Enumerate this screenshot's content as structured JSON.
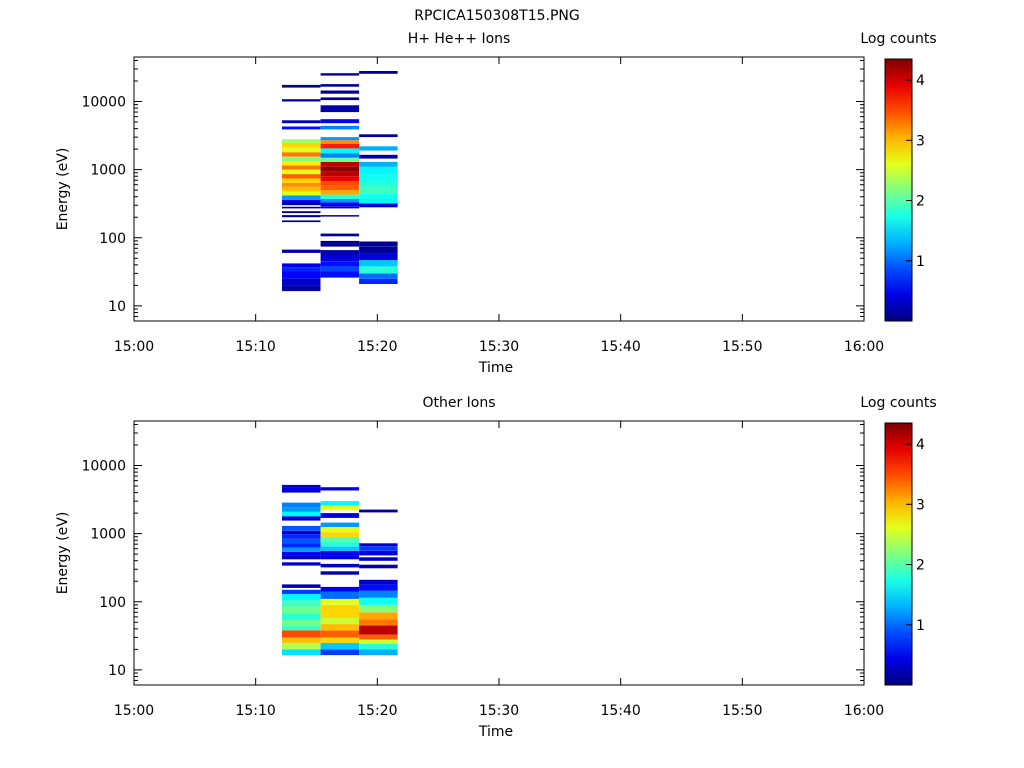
{
  "figure_title": "RPCICA150308T15.PNG",
  "chart_data": [
    {
      "type": "heatmap",
      "title": "H+ He++ Ions",
      "xlabel": "Time",
      "ylabel": "Energy (eV)",
      "x_ticks": [
        "15:00",
        "15:10",
        "15:20",
        "15:30",
        "15:40",
        "15:50",
        "16:00"
      ],
      "xlim": [
        "15:00",
        "16:00"
      ],
      "y_scale": "log",
      "y_ticks": [
        10,
        100,
        1000,
        10000
      ],
      "y_tick_labels": [
        "10",
        "100",
        "1000",
        "10000"
      ],
      "ylim": [
        6,
        45000
      ],
      "colorbar": {
        "label": "Log counts",
        "range": [
          0,
          4.35
        ],
        "ticks": [
          "1",
          "2",
          "3",
          "4"
        ],
        "colormap": "jet"
      },
      "time_bins": [
        {
          "start": "15:12:10",
          "end": "15:15:20",
          "cells": [
            [
              16.5,
              20,
              0.15
            ],
            [
              20,
              25,
              0.3
            ],
            [
              25,
              32,
              0.55
            ],
            [
              32,
              37,
              0.7
            ],
            [
              37,
              42,
              0.45
            ],
            [
              60,
              67,
              0.15
            ],
            [
              170,
              180,
              0.1
            ],
            [
              200,
              215,
              0.1
            ],
            [
              230,
              245,
              0.1
            ],
            [
              270,
              285,
              0.1
            ],
            [
              300,
              330,
              0.2
            ],
            [
              330,
              360,
              0.5
            ],
            [
              360,
              420,
              1.2
            ],
            [
              420,
              480,
              2.6
            ],
            [
              480,
              560,
              3.0
            ],
            [
              560,
              640,
              3.2
            ],
            [
              640,
              740,
              2.9
            ],
            [
              740,
              860,
              3.4
            ],
            [
              860,
              1000,
              2.6
            ],
            [
              1000,
              1150,
              3.3
            ],
            [
              1150,
              1330,
              2.8
            ],
            [
              1330,
              1550,
              2.2
            ],
            [
              1550,
              1800,
              3.3
            ],
            [
              1800,
              2100,
              2.6
            ],
            [
              2100,
              2450,
              2.9
            ],
            [
              2450,
              2800,
              2.3
            ],
            [
              3900,
              4300,
              0.6
            ],
            [
              4800,
              5300,
              0.3
            ],
            [
              10000,
              10800,
              0.1
            ],
            [
              16000,
              17500,
              0.1
            ]
          ]
        },
        {
          "start": "15:15:20",
          "end": "15:18:30",
          "cells": [
            [
              26,
              32,
              0.6
            ],
            [
              32,
              38,
              0.85
            ],
            [
              38,
              45,
              0.6
            ],
            [
              45,
              55,
              0.4
            ],
            [
              55,
              66,
              0.2
            ],
            [
              74,
              82,
              0.1
            ],
            [
              82,
              90,
              0.1
            ],
            [
              105,
              115,
              0.1
            ],
            [
              205,
              215,
              0.1
            ],
            [
              270,
              290,
              0.3
            ],
            [
              290,
              330,
              0.5
            ],
            [
              330,
              370,
              1.2
            ],
            [
              370,
              430,
              1.8
            ],
            [
              430,
              500,
              3.1
            ],
            [
              500,
              580,
              3.4
            ],
            [
              580,
              680,
              3.5
            ],
            [
              680,
              800,
              3.9
            ],
            [
              800,
              950,
              4.1
            ],
            [
              950,
              1100,
              4.3
            ],
            [
              1100,
              1300,
              4.1
            ],
            [
              1300,
              1500,
              2.1
            ],
            [
              1500,
              1750,
              1.1
            ],
            [
              1750,
              2050,
              1.6
            ],
            [
              2050,
              2400,
              3.7
            ],
            [
              2400,
              2700,
              3.2
            ],
            [
              2700,
              3000,
              1.2
            ],
            [
              3900,
              4400,
              1.1
            ],
            [
              4800,
              5500,
              0.5
            ],
            [
              7000,
              8800,
              0.2
            ],
            [
              10500,
              11500,
              0.1
            ],
            [
              13000,
              14500,
              0.1
            ],
            [
              16500,
              18000,
              0.1
            ],
            [
              24000,
              26000,
              0.1
            ]
          ]
        },
        {
          "start": "15:18:30",
          "end": "15:21:40",
          "cells": [
            [
              21,
              25,
              0.7
            ],
            [
              25,
              30,
              1.0
            ],
            [
              30,
              38,
              1.8
            ],
            [
              38,
              47,
              1.4
            ],
            [
              47,
              58,
              0.4
            ],
            [
              58,
              75,
              0.1
            ],
            [
              75,
              88,
              0.1
            ],
            [
              280,
              320,
              0.4
            ],
            [
              320,
              370,
              1.6
            ],
            [
              370,
              450,
              1.7
            ],
            [
              450,
              550,
              1.9
            ],
            [
              550,
              680,
              1.8
            ],
            [
              680,
              850,
              1.7
            ],
            [
              850,
              1100,
              1.6
            ],
            [
              1100,
              1300,
              1.3
            ],
            [
              1450,
              1650,
              0.2
            ],
            [
              1900,
              2200,
              1.3
            ],
            [
              3000,
              3300,
              0.1
            ],
            [
              25500,
              28000,
              0.1
            ]
          ]
        }
      ]
    },
    {
      "type": "heatmap",
      "title": "Other Ions",
      "xlabel": "Time",
      "ylabel": "Energy (eV)",
      "x_ticks": [
        "15:00",
        "15:10",
        "15:20",
        "15:30",
        "15:40",
        "15:50",
        "16:00"
      ],
      "xlim": [
        "15:00",
        "16:00"
      ],
      "y_scale": "log",
      "y_ticks": [
        10,
        100,
        1000,
        10000
      ],
      "y_tick_labels": [
        "10",
        "100",
        "1000",
        "10000"
      ],
      "ylim": [
        6,
        45000
      ],
      "colorbar": {
        "label": "Log counts",
        "range": [
          0,
          4.35
        ],
        "ticks": [
          "1",
          "2",
          "3",
          "4"
        ],
        "colormap": "jet"
      },
      "time_bins": [
        {
          "start": "15:12:10",
          "end": "15:15:20",
          "cells": [
            [
              16.5,
              20,
              1.5
            ],
            [
              20,
              25,
              2.4
            ],
            [
              25,
              30,
              3.0
            ],
            [
              30,
              38,
              3.5
            ],
            [
              38,
              45,
              1.9
            ],
            [
              45,
              55,
              2.1
            ],
            [
              55,
              68,
              1.8
            ],
            [
              68,
              85,
              2.1
            ],
            [
              85,
              105,
              1.9
            ],
            [
              105,
              130,
              1.6
            ],
            [
              130,
              150,
              0.8
            ],
            [
              160,
              180,
              0.2
            ],
            [
              340,
              380,
              0.3
            ],
            [
              420,
              480,
              0.3
            ],
            [
              480,
              540,
              0.5
            ],
            [
              540,
              620,
              1.2
            ],
            [
              620,
              720,
              0.7
            ],
            [
              720,
              840,
              0.9
            ],
            [
              840,
              980,
              0.7
            ],
            [
              980,
              1100,
              0.3
            ],
            [
              1100,
              1300,
              0.9
            ],
            [
              1550,
              1800,
              0.4
            ],
            [
              1800,
              2100,
              1.6
            ],
            [
              2100,
              2450,
              1.2
            ],
            [
              2450,
              2850,
              1.1
            ],
            [
              4000,
              4700,
              0.4
            ],
            [
              4700,
              5200,
              0.3
            ]
          ]
        },
        {
          "start": "15:15:20",
          "end": "15:18:30",
          "cells": [
            [
              16.5,
              20,
              0.8
            ],
            [
              20,
              25,
              1.4
            ],
            [
              25,
              30,
              2.9
            ],
            [
              30,
              38,
              3.4
            ],
            [
              38,
              47,
              3.0
            ],
            [
              47,
              58,
              2.5
            ],
            [
              58,
              72,
              2.9
            ],
            [
              72,
              90,
              2.9
            ],
            [
              90,
              110,
              2.6
            ],
            [
              110,
              140,
              1.0
            ],
            [
              140,
              165,
              0.5
            ],
            [
              250,
              280,
              0.2
            ],
            [
              320,
              360,
              0.3
            ],
            [
              420,
              480,
              0.4
            ],
            [
              480,
              560,
              0.5
            ],
            [
              560,
              650,
              1.4
            ],
            [
              650,
              760,
              1.8
            ],
            [
              760,
              900,
              2.0
            ],
            [
              900,
              1050,
              2.9
            ],
            [
              1050,
              1250,
              2.6
            ],
            [
              1250,
              1450,
              1.2
            ],
            [
              1700,
              2000,
              0.4
            ],
            [
              2200,
              2600,
              2.6
            ],
            [
              2600,
              3000,
              1.6
            ],
            [
              4300,
              4800,
              0.4
            ]
          ]
        },
        {
          "start": "15:18:30",
          "end": "15:21:40",
          "cells": [
            [
              16.5,
              20,
              1.3
            ],
            [
              20,
              24,
              1.8
            ],
            [
              24,
              28,
              2.5
            ],
            [
              28,
              33,
              3.4
            ],
            [
              33,
              45,
              4.1
            ],
            [
              45,
              55,
              3.3
            ],
            [
              55,
              70,
              3.1
            ],
            [
              70,
              90,
              2.2
            ],
            [
              90,
              115,
              1.7
            ],
            [
              115,
              145,
              1.1
            ],
            [
              145,
              180,
              0.6
            ],
            [
              180,
              210,
              0.3
            ],
            [
              310,
              350,
              0.2
            ],
            [
              400,
              450,
              0.3
            ],
            [
              480,
              560,
              0.4
            ],
            [
              560,
              650,
              0.8
            ],
            [
              650,
              720,
              0.3
            ],
            [
              2050,
              2250,
              0.1
            ]
          ]
        }
      ]
    }
  ]
}
